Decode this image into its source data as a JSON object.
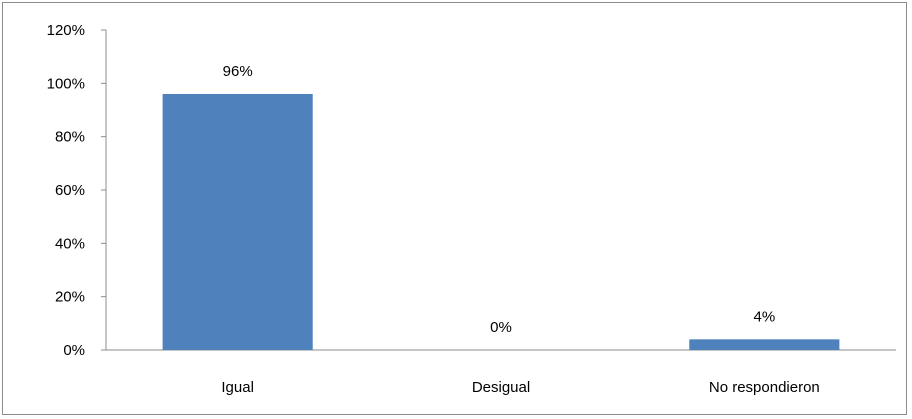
{
  "chart_data": {
    "type": "bar",
    "categories": [
      "Igual",
      "Desigual",
      "No respondieron"
    ],
    "values": [
      96,
      0,
      4
    ],
    "data_labels": [
      "96%",
      "0%",
      "4%"
    ],
    "ylim": [
      0,
      120
    ],
    "yticks": [
      0,
      20,
      40,
      60,
      80,
      100,
      120
    ],
    "ytick_labels": [
      "0%",
      "20%",
      "40%",
      "60%",
      "80%",
      "100%",
      "120%"
    ],
    "grid": false,
    "legend": false,
    "colors": {
      "bar": "#4f81bd",
      "axis": "#8c8c8c"
    }
  }
}
